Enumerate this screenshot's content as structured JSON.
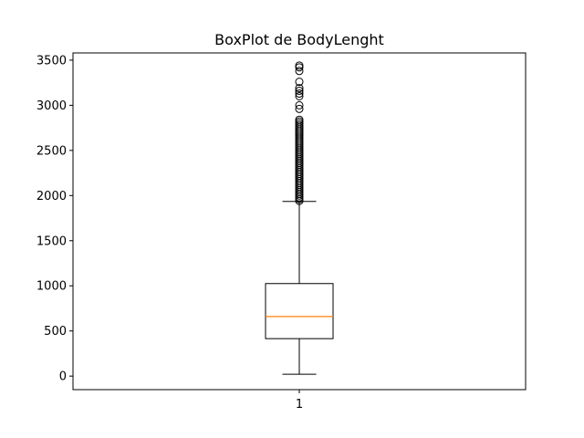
{
  "chart_data": {
    "type": "box",
    "title": "BoxPlot de BodyLenght",
    "xlabel": "",
    "ylabel": "",
    "categories": [
      "1"
    ],
    "ylim": [
      -150,
      3580
    ],
    "yticks": [
      0,
      500,
      1000,
      1500,
      2000,
      2500,
      3000,
      3500
    ],
    "grid": false,
    "series": [
      {
        "whisker_low": 20,
        "q1": 415,
        "median": 660,
        "q3": 1025,
        "whisker_high": 1935,
        "outliers": [
          1940,
          1960,
          1980,
          2000,
          2020,
          2040,
          2060,
          2080,
          2100,
          2120,
          2140,
          2160,
          2180,
          2200,
          2220,
          2240,
          2260,
          2280,
          2300,
          2320,
          2340,
          2360,
          2380,
          2400,
          2420,
          2440,
          2460,
          2480,
          2500,
          2520,
          2540,
          2560,
          2580,
          2600,
          2620,
          2640,
          2660,
          2680,
          2700,
          2720,
          2740,
          2760,
          2780,
          2800,
          2820,
          2840,
          2960,
          3000,
          3100,
          3130,
          3160,
          3190,
          3260,
          3380,
          3420,
          3440
        ]
      }
    ],
    "colors": {
      "box": "#000000",
      "median": "#ff7f0e",
      "outlier_edge": "#000000"
    }
  }
}
